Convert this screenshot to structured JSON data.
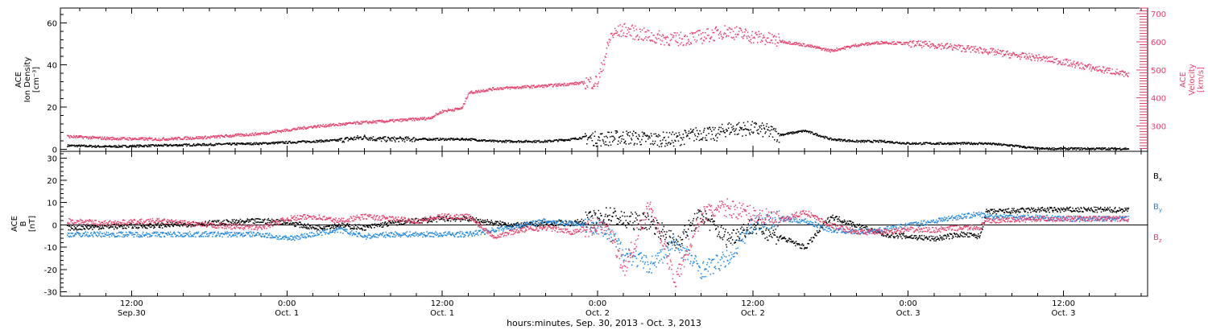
{
  "colors": {
    "black": "#000000",
    "red": "#e8406b",
    "blue": "#1f86e0"
  },
  "footer_label": "hours:minutes, Sep. 30, 2013 - Oct.  3, 2013",
  "chart_data": [
    {
      "type": "scatter",
      "panel": "plasma",
      "ylabel_left": [
        "ACE",
        "Ion Density",
        "[cm⁻³]"
      ],
      "ylabel_right": [
        "ACE",
        "Velocity",
        "[km/s]"
      ],
      "ylim_left": [
        -1,
        67
      ],
      "ylim_right": [
        210,
        720
      ],
      "yticks_left": [
        0,
        20,
        40,
        60
      ],
      "yticks_right": [
        300,
        400,
        500,
        600,
        700
      ],
      "x_unit": "hours since Sep 30 00:00 UT",
      "xlim": [
        6.5,
        90.5
      ],
      "series": [
        {
          "axis": "left",
          "color": "#000000",
          "x": [
            7,
            10,
            14,
            18,
            22,
            24,
            26,
            28,
            30,
            31,
            33,
            36,
            38,
            40,
            42,
            44,
            46,
            47,
            48,
            50,
            52,
            54,
            56,
            57,
            58,
            60,
            61,
            62,
            64,
            66,
            68,
            70,
            72,
            74,
            76,
            78,
            80,
            82,
            84,
            86,
            88,
            89
          ],
          "values": [
            2,
            1.5,
            2,
            2.5,
            3,
            3.5,
            4,
            4.5,
            6,
            5,
            5,
            5,
            5,
            4,
            4,
            4,
            5,
            6,
            5,
            6,
            5,
            5,
            8,
            7,
            10,
            10,
            9,
            7,
            9,
            5,
            4,
            4,
            3,
            3,
            3,
            3,
            2,
            0.5,
            0.5,
            0.5,
            0.5,
            0.5
          ]
        },
        {
          "axis": "right",
          "color": "#e8406b",
          "x": [
            7,
            10,
            14,
            18,
            22,
            26,
            30,
            32,
            35,
            36,
            37.5,
            38,
            40,
            44,
            48,
            49,
            50,
            52,
            54,
            56,
            58,
            60,
            62,
            64,
            66,
            68,
            70,
            72,
            74,
            76,
            78,
            80,
            82,
            84,
            86,
            88,
            89
          ],
          "values": [
            265,
            258,
            255,
            262,
            275,
            300,
            315,
            320,
            330,
            355,
            365,
            420,
            435,
            445,
            460,
            625,
            645,
            620,
            610,
            620,
            640,
            620,
            605,
            590,
            570,
            590,
            600,
            595,
            590,
            580,
            570,
            555,
            545,
            530,
            510,
            495,
            480
          ]
        }
      ]
    },
    {
      "type": "scatter",
      "panel": "magnetic field",
      "ylabel_left": [
        "ACE",
        "B",
        "[nT]"
      ],
      "ylim": [
        -32,
        33
      ],
      "yticks": [
        -30,
        -20,
        -10,
        0,
        10,
        20,
        30
      ],
      "x_unit": "hours since Sep 30 00:00 UT",
      "xlim": [
        6.5,
        90.5
      ],
      "legend": [
        "Bx",
        "By",
        "Bz"
      ],
      "series": [
        {
          "name": "Bx",
          "color": "#000000",
          "x": [
            7,
            10,
            14,
            18,
            22,
            24,
            26,
            28,
            30,
            32,
            34,
            36,
            38,
            40,
            42,
            44,
            46,
            48,
            49,
            50,
            52,
            54,
            56,
            58,
            60,
            62,
            64,
            66,
            68,
            70,
            72,
            74,
            76,
            77.5,
            78,
            80,
            82,
            84,
            86,
            88,
            89
          ],
          "values": [
            -1,
            -0.5,
            0,
            1,
            2,
            1.5,
            -1,
            0,
            -1,
            1,
            2,
            3,
            3,
            1,
            0,
            1,
            1,
            3,
            5,
            2,
            2,
            -8,
            5,
            -6,
            0,
            -5,
            -10,
            4,
            0,
            -4,
            -5,
            -6,
            -4,
            -5,
            6,
            6.5,
            7,
            7,
            7,
            7,
            7
          ]
        },
        {
          "name": "By",
          "color": "#1f86e0",
          "x": [
            7,
            10,
            14,
            18,
            22,
            24,
            26,
            28,
            30,
            32,
            34,
            36,
            38,
            40,
            42,
            44,
            46,
            48,
            49,
            50,
            52,
            54,
            56,
            58,
            60,
            62,
            64,
            66,
            68,
            70,
            72,
            74,
            76,
            77.5,
            78,
            80,
            82,
            84,
            86,
            88,
            89
          ],
          "values": [
            -4,
            -4,
            -4,
            -4,
            -4,
            -6,
            -4,
            -2,
            -5,
            -4,
            -4,
            -4,
            -4,
            -2,
            0,
            2,
            1,
            0,
            -5,
            -12,
            -18,
            -8,
            -20,
            -15,
            1,
            3,
            2,
            -2,
            -3,
            -2,
            0,
            2,
            4,
            5,
            4,
            4,
            3.5,
            3,
            3,
            3,
            3
          ]
        },
        {
          "name": "Bz",
          "color": "#e8406b",
          "x": [
            7,
            10,
            14,
            18,
            22,
            24,
            26,
            28,
            30,
            32,
            34,
            36,
            38,
            40,
            42,
            44,
            46,
            48,
            49,
            50,
            52,
            54,
            56,
            58,
            60,
            62,
            64,
            66,
            68,
            70,
            72,
            74,
            76,
            77.5,
            78,
            80,
            82,
            84,
            86,
            88,
            89
          ],
          "values": [
            2,
            1,
            2,
            0,
            -1,
            3,
            4,
            2,
            4,
            3,
            2,
            4,
            4,
            -5,
            -2,
            -1,
            -3,
            0,
            -3,
            -20,
            10,
            -25,
            5,
            8,
            5,
            2,
            6,
            0,
            -3,
            -3,
            -2,
            -2,
            -1,
            -1,
            2,
            2.5,
            3,
            3,
            3,
            3,
            3
          ]
        }
      ]
    }
  ],
  "x_axis": {
    "ticks": [
      {
        "pos": 12,
        "label": "12:00",
        "sublabel": "Sep.30"
      },
      {
        "pos": 24,
        "label": "0:00",
        "sublabel": "Oct. 1"
      },
      {
        "pos": 36,
        "label": "12:00",
        "sublabel": "Oct. 1"
      },
      {
        "pos": 48,
        "label": "0:00",
        "sublabel": "Oct. 2"
      },
      {
        "pos": 60,
        "label": "12:00",
        "sublabel": "Oct. 2"
      },
      {
        "pos": 72,
        "label": "0:00",
        "sublabel": "Oct. 3"
      },
      {
        "pos": 84,
        "label": "12:00",
        "sublabel": "Oct. 3"
      }
    ]
  }
}
